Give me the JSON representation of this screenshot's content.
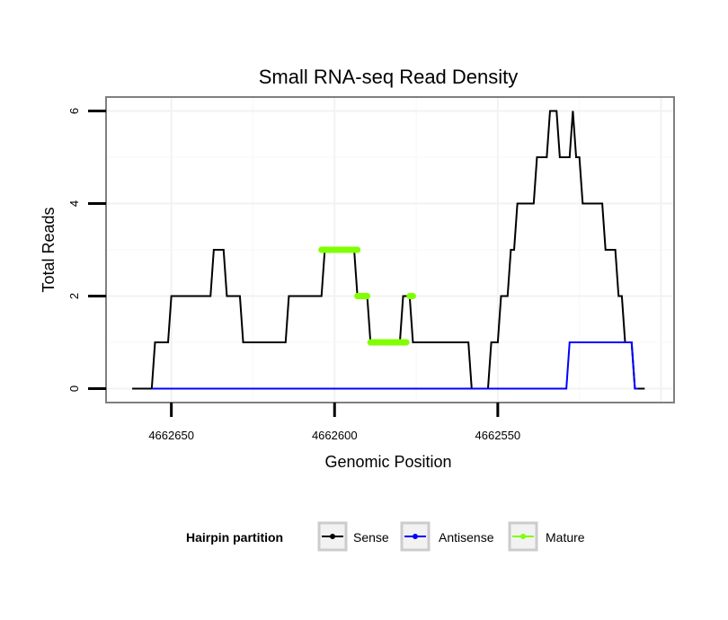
{
  "chart_data": {
    "type": "line",
    "title": "Small RNA-seq Read Density",
    "xlabel": "Genomic Position",
    "ylabel": "Total Reads",
    "xlim": [
      4662670,
      4662496
    ],
    "ylim": [
      -0.3,
      6.3
    ],
    "x_reversed": true,
    "x_ticks": [
      4662650,
      4662600,
      4662550
    ],
    "x_tick_labels": [
      "4662650",
      "4662600",
      "4662550"
    ],
    "y_ticks": [
      0,
      2,
      4,
      6
    ],
    "y_tick_labels": [
      "0",
      "2",
      "4",
      "6"
    ],
    "grid": true,
    "legend": {
      "title": "Hairpin partition",
      "position": "bottom",
      "entries": [
        "Sense",
        "Antisense",
        "Mature"
      ]
    },
    "series": [
      {
        "name": "Sense",
        "color": "#000000",
        "points": [
          [
            4662662,
            0
          ],
          [
            4662656,
            0
          ],
          [
            4662655,
            1
          ],
          [
            4662651,
            1
          ],
          [
            4662650,
            2
          ],
          [
            4662638,
            2
          ],
          [
            4662637,
            3
          ],
          [
            4662634,
            3
          ],
          [
            4662633,
            2
          ],
          [
            4662629,
            2
          ],
          [
            4662628,
            1
          ],
          [
            4662615,
            1
          ],
          [
            4662614,
            2
          ],
          [
            4662604,
            2
          ],
          [
            4662603,
            3
          ],
          [
            4662594,
            3
          ],
          [
            4662593,
            2
          ],
          [
            4662590,
            2
          ],
          [
            4662589,
            1
          ],
          [
            4662580,
            1
          ],
          [
            4662579,
            2
          ],
          [
            4662577,
            2
          ],
          [
            4662576,
            1
          ],
          [
            4662559,
            1
          ],
          [
            4662558,
            0
          ],
          [
            4662553,
            0
          ],
          [
            4662552,
            1
          ],
          [
            4662550,
            1
          ],
          [
            4662549,
            2
          ],
          [
            4662547,
            2
          ],
          [
            4662546,
            3
          ],
          [
            4662545,
            3
          ],
          [
            4662544,
            4
          ],
          [
            4662539,
            4
          ],
          [
            4662538,
            5
          ],
          [
            4662535,
            5
          ],
          [
            4662534,
            6
          ],
          [
            4662532,
            6
          ],
          [
            4662531,
            5
          ],
          [
            4662528,
            5
          ],
          [
            4662527,
            6
          ],
          [
            4662526,
            5
          ],
          [
            4662525,
            5
          ],
          [
            4662524,
            4
          ],
          [
            4662518,
            4
          ],
          [
            4662517,
            3
          ],
          [
            4662514,
            3
          ],
          [
            4662513,
            2
          ],
          [
            4662512,
            2
          ],
          [
            4662511,
            1
          ],
          [
            4662509,
            1
          ],
          [
            4662508,
            0
          ],
          [
            4662505,
            0
          ]
        ]
      },
      {
        "name": "Antisense",
        "color": "#0000ff",
        "points": [
          [
            4662656,
            0
          ],
          [
            4662529,
            0
          ],
          [
            4662528,
            1
          ],
          [
            4662509,
            1
          ],
          [
            4662508,
            0
          ],
          [
            4662507,
            0
          ]
        ]
      },
      {
        "name": "Mature",
        "color": "#7fff00",
        "segments": [
          [
            [
              4662604,
              3
            ],
            [
              4662593,
              3
            ]
          ],
          [
            [
              4662593,
              2
            ],
            [
              4662590,
              2
            ]
          ],
          [
            [
              4662589,
              1
            ],
            [
              4662578,
              1
            ]
          ],
          [
            [
              4662577,
              2
            ],
            [
              4662576,
              2
            ]
          ]
        ]
      }
    ]
  }
}
